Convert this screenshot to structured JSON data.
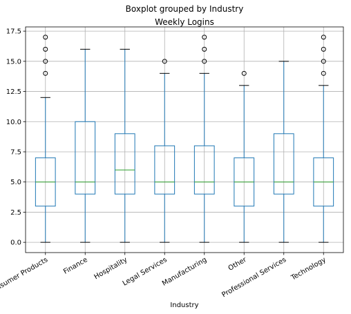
{
  "chart_data": {
    "type": "box",
    "suptitle": "Boxplot grouped by Industry",
    "title": "Weekly Logins",
    "xlabel": "Industry",
    "ylabel": "",
    "ylim": [
      -0.85,
      17.85
    ],
    "yticks": [
      0.0,
      2.5,
      5.0,
      7.5,
      10.0,
      12.5,
      15.0,
      17.5
    ],
    "ytick_labels": [
      "0.0",
      "2.5",
      "5.0",
      "7.5",
      "10.0",
      "12.5",
      "15.0",
      "17.5"
    ],
    "grid": true,
    "colors": {
      "box": "#1f77b4",
      "median": "#2ca02c",
      "whisker_cap": "#000000",
      "grid": "#b0b0b0"
    },
    "categories": [
      "Consumer Products",
      "Finance",
      "Hospitality",
      "Legal Services",
      "Manufacturing",
      "Other",
      "Professional Services",
      "Technology"
    ],
    "boxes": [
      {
        "category": "Consumer Products",
        "q1": 3,
        "median": 5,
        "q3": 7,
        "whisker_low": 0,
        "whisker_high": 12,
        "outliers": [
          14,
          15,
          16,
          17
        ]
      },
      {
        "category": "Finance",
        "q1": 4,
        "median": 5,
        "q3": 10,
        "whisker_low": 0,
        "whisker_high": 16,
        "outliers": []
      },
      {
        "category": "Hospitality",
        "q1": 4,
        "median": 6,
        "q3": 9,
        "whisker_low": 0,
        "whisker_high": 16,
        "outliers": []
      },
      {
        "category": "Legal Services",
        "q1": 4,
        "median": 5,
        "q3": 8,
        "whisker_low": 0,
        "whisker_high": 14,
        "outliers": [
          15
        ]
      },
      {
        "category": "Manufacturing",
        "q1": 4,
        "median": 5,
        "q3": 8,
        "whisker_low": 0,
        "whisker_high": 14,
        "outliers": [
          15,
          16,
          17
        ]
      },
      {
        "category": "Other",
        "q1": 3,
        "median": 5,
        "q3": 7,
        "whisker_low": 0,
        "whisker_high": 13,
        "outliers": [
          14
        ]
      },
      {
        "category": "Professional Services",
        "q1": 4,
        "median": 5,
        "q3": 9,
        "whisker_low": 0,
        "whisker_high": 15,
        "outliers": []
      },
      {
        "category": "Technology",
        "q1": 3,
        "median": 5,
        "q3": 7,
        "whisker_low": 0,
        "whisker_high": 13,
        "outliers": [
          14,
          15,
          16,
          17
        ]
      }
    ]
  }
}
